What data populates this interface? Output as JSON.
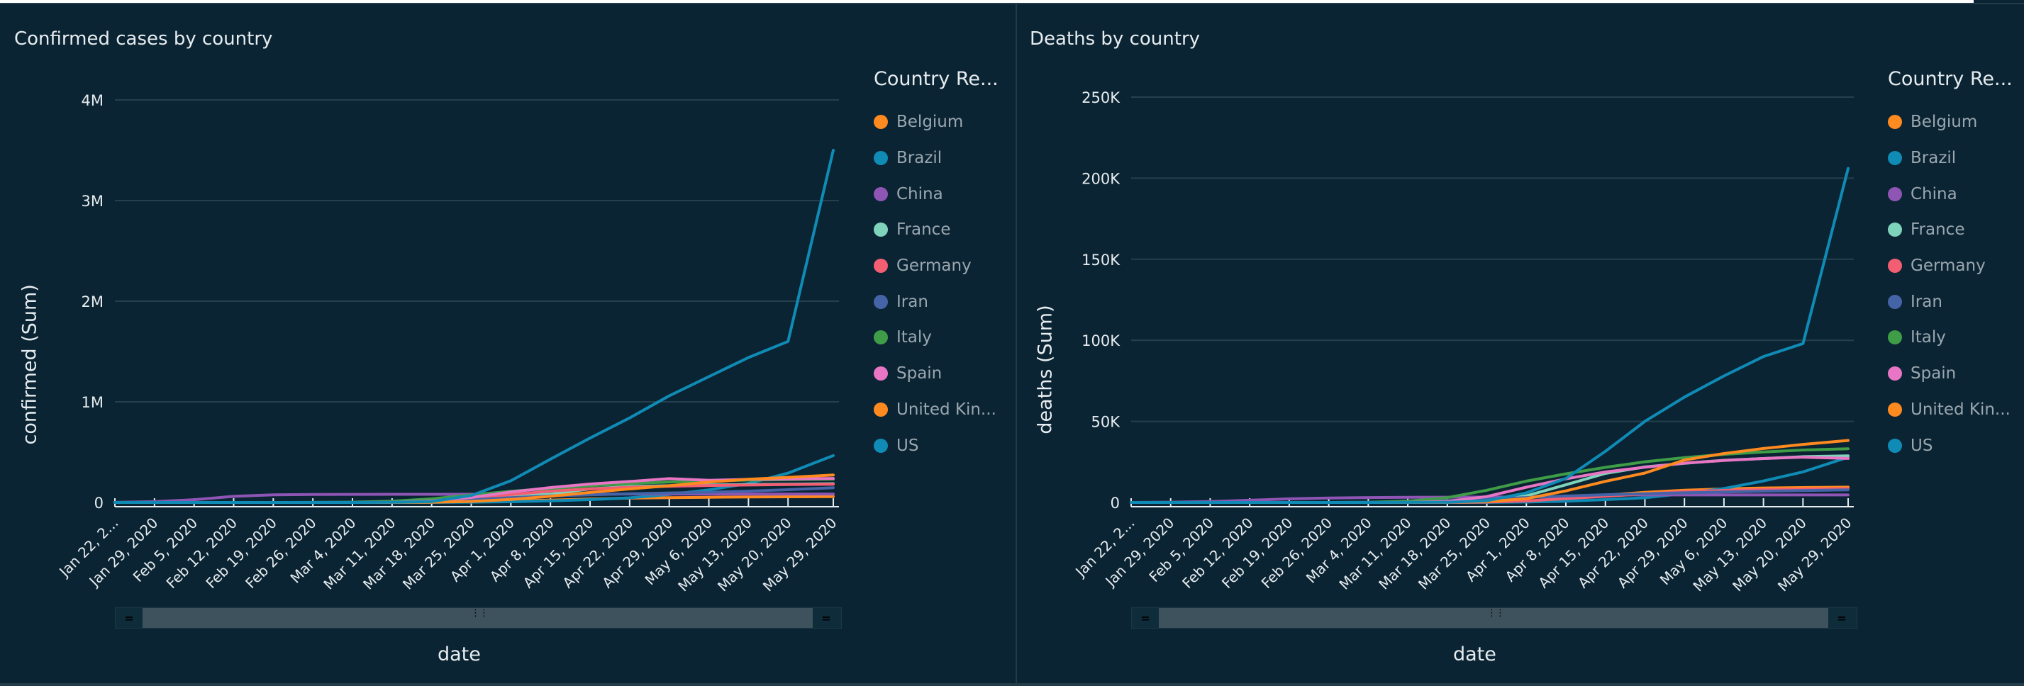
{
  "chart_data": [
    {
      "type": "line",
      "title": "Confirmed cases by country",
      "xlabel": "date",
      "ylabel": "confirmed (Sum)",
      "ylim": [
        0,
        4000000
      ],
      "yticks": [
        0,
        1000000,
        2000000,
        3000000,
        4000000
      ],
      "ytick_labels": [
        "0",
        "1M",
        "2M",
        "3M",
        "4M"
      ],
      "x_start": "2020-01-22",
      "x_end": "2020-05-29",
      "xtick_labels": [
        "Jan 22, 2...",
        "Jan 29, 2020",
        "Feb 5, 2020",
        "Feb 12, 2020",
        "Feb 19, 2020",
        "Feb 26, 2020",
        "Mar 4, 2020",
        "Mar 11, 2020",
        "Mar 18, 2020",
        "Mar 25, 2020",
        "Apr 1, 2020",
        "Apr 8, 2020",
        "Apr 15, 2020",
        "Apr 22, 2020",
        "Apr 29, 2020",
        "May 6, 2020",
        "May 13, 2020",
        "May 20, 2020",
        "May 29, 2020"
      ],
      "grid": true,
      "legend_title": "Country Re...",
      "legend_position": "right",
      "x_days": [
        0,
        7,
        14,
        21,
        28,
        35,
        42,
        49,
        56,
        63,
        70,
        77,
        84,
        91,
        98,
        105,
        112,
        119,
        127
      ],
      "series": [
        {
          "name": "Belgium",
          "color": "#ff8a1f",
          "values": [
            0,
            0,
            0,
            0,
            0,
            0,
            0,
            200,
            1500,
            4900,
            13900,
            23400,
            34800,
            42800,
            47900,
            51400,
            54600,
            56200,
            58400
          ]
        },
        {
          "name": "Brazil",
          "color": "#0f8bb5",
          "values": [
            0,
            0,
            0,
            0,
            0,
            0,
            4,
            52,
            428,
            2554,
            6836,
            15927,
            28320,
            45757,
            79685,
            125218,
            188974,
            291579,
            465166
          ]
        },
        {
          "name": "China",
          "color": "#8e55b4",
          "values": [
            548,
            7736,
            27440,
            60290,
            75077,
            78630,
            80422,
            80921,
            81102,
            81661,
            82361,
            82809,
            83356,
            83884,
            83940,
            83970,
            84024,
            84063,
            84106
          ]
        },
        {
          "name": "France",
          "color": "#7fd3bb",
          "values": [
            0,
            5,
            6,
            11,
            12,
            18,
            285,
            2293,
            9134,
            25600,
            57749,
            83080,
            134582,
            158303,
            166543,
            174224,
            178994,
            181826,
            186835
          ]
        },
        {
          "name": "Germany",
          "color": "#f35e72",
          "values": [
            0,
            4,
            12,
            16,
            16,
            27,
            262,
            1908,
            12327,
            37323,
            77872,
            113296,
            134753,
            150648,
            161539,
            168162,
            173171,
            178473,
            181482
          ]
        },
        {
          "name": "Iran",
          "color": "#4564a8",
          "values": [
            0,
            0,
            0,
            0,
            5,
            139,
            2922,
            9000,
            17361,
            27017,
            47593,
            64586,
            76389,
            85996,
            94640,
            101650,
            112725,
            126949,
            146668
          ]
        },
        {
          "name": "Italy",
          "color": "#3f9d47",
          "values": [
            0,
            0,
            2,
            3,
            3,
            453,
            3089,
            12462,
            35713,
            74386,
            110574,
            139422,
            165155,
            187327,
            203591,
            214457,
            222104,
            227364,
            231732
          ]
        },
        {
          "name": "Spain",
          "color": "#e876c5",
          "values": [
            0,
            0,
            1,
            2,
            2,
            13,
            222,
            2277,
            13910,
            49515,
            104118,
            148220,
            182816,
            208389,
            236899,
            220325,
            228691,
            233037,
            238564
          ]
        },
        {
          "name": "United Kingdom",
          "color": "#ff8a1f",
          "values": [
            0,
            0,
            2,
            9,
            9,
            13,
            87,
            459,
            2689,
            9640,
            29865,
            61474,
            99483,
            134638,
            166441,
            202359,
            230986,
            249619,
            272826
          ]
        },
        {
          "name": "US",
          "color": "#0f8bb5",
          "values": [
            1,
            5,
            12,
            13,
            15,
            60,
            217,
            1281,
            9415,
            68905,
            215215,
            430000,
            640000,
            840000,
            1060000,
            1250000,
            1440000,
            1600000,
            3500000
          ]
        }
      ]
    },
    {
      "type": "line",
      "title": "Deaths by country",
      "xlabel": "date",
      "ylabel": "deaths (Sum)",
      "ylim": [
        0,
        250000
      ],
      "yticks": [
        0,
        50000,
        100000,
        150000,
        200000,
        250000
      ],
      "ytick_labels": [
        "0",
        "50K",
        "100K",
        "150K",
        "200K",
        "250K"
      ],
      "x_start": "2020-01-22",
      "x_end": "2020-05-29",
      "xtick_labels": [
        "Jan 22, 2...",
        "Jan 29, 2020",
        "Feb 5, 2020",
        "Feb 12, 2020",
        "Feb 19, 2020",
        "Feb 26, 2020",
        "Mar 4, 2020",
        "Mar 11, 2020",
        "Mar 18, 2020",
        "Mar 25, 2020",
        "Apr 1, 2020",
        "Apr 8, 2020",
        "Apr 15, 2020",
        "Apr 22, 2020",
        "Apr 29, 2020",
        "May 6, 2020",
        "May 13, 2020",
        "May 20, 2020",
        "May 29, 2020"
      ],
      "grid": true,
      "legend_title": "Country Re...",
      "legend_position": "right",
      "x_days": [
        0,
        7,
        14,
        21,
        28,
        35,
        42,
        49,
        56,
        63,
        70,
        77,
        84,
        91,
        98,
        105,
        112,
        119,
        127
      ],
      "series": [
        {
          "name": "Belgium",
          "color": "#ff8a1f",
          "values": [
            0,
            0,
            0,
            0,
            0,
            0,
            0,
            3,
            14,
            178,
            828,
            2240,
            4440,
            6262,
            7501,
            8339,
            8903,
            9186,
            9430
          ]
        },
        {
          "name": "Brazil",
          "color": "#0f8bb5",
          "values": [
            0,
            0,
            0,
            0,
            0,
            0,
            0,
            0,
            4,
            59,
            241,
            800,
            1736,
            2906,
            5513,
            8588,
            13240,
            18859,
            27878
          ]
        },
        {
          "name": "China",
          "color": "#8e55b4",
          "values": [
            17,
            170,
            564,
            1370,
            2239,
            2761,
            3013,
            3172,
            3248,
            3300,
            3316,
            3335,
            4636,
            4642,
            4643,
            4637,
            4637,
            4638,
            4638
          ]
        },
        {
          "name": "France",
          "color": "#7fd3bb",
          "values": [
            0,
            0,
            0,
            1,
            1,
            2,
            4,
            48,
            264,
            1333,
            4043,
            10887,
            17941,
            21889,
            24121,
            25990,
            27081,
            28242,
            28774
          ]
        },
        {
          "name": "Germany",
          "color": "#f35e72",
          "values": [
            0,
            0,
            0,
            0,
            0,
            0,
            0,
            3,
            28,
            206,
            931,
            2349,
            3804,
            5279,
            6623,
            7417,
            7928,
            8193,
            8530
          ]
        },
        {
          "name": "Iran",
          "color": "#4564a8",
          "values": [
            0,
            0,
            0,
            0,
            2,
            19,
            92,
            354,
            1135,
            2077,
            3036,
            3993,
            4777,
            5391,
            5957,
            6486,
            6937,
            7359,
            7797
          ]
        },
        {
          "name": "Italy",
          "color": "#3f9d47",
          "values": [
            0,
            0,
            0,
            0,
            0,
            12,
            107,
            827,
            2978,
            7503,
            13155,
            17669,
            21645,
            25085,
            27682,
            29684,
            31106,
            32330,
            33142
          ]
        },
        {
          "name": "Spain",
          "color": "#e876c5",
          "values": [
            0,
            0,
            0,
            0,
            0,
            0,
            2,
            55,
            623,
            3647,
            9387,
            14555,
            18812,
            21717,
            24275,
            25857,
            27104,
            27940,
            27121
          ]
        },
        {
          "name": "United Kingdom",
          "color": "#ff8a1f",
          "values": [
            0,
            0,
            0,
            0,
            0,
            0,
            0,
            8,
            104,
            466,
            2357,
            7111,
            13008,
            18151,
            26166,
            30150,
            33264,
            35786,
            38243
          ]
        },
        {
          "name": "US",
          "color": "#0f8bb5",
          "values": [
            0,
            0,
            0,
            0,
            0,
            0,
            11,
            36,
            150,
            1050,
            5926,
            14817,
            31500,
            50000,
            65000,
            78000,
            90000,
            98000,
            206000
          ]
        }
      ]
    }
  ],
  "panels": [
    {
      "title": "Confirmed cases by country",
      "ylabel": "confirmed (Sum)",
      "xlabel": "date",
      "legend_title": "Country Re...",
      "legend": [
        "Belgium",
        "Brazil",
        "China",
        "France",
        "Germany",
        "Iran",
        "Italy",
        "Spain",
        "United Kin...",
        "US"
      ]
    },
    {
      "title": "Deaths by country",
      "ylabel": "deaths (Sum)",
      "xlabel": "date",
      "legend_title": "Country Re...",
      "legend": [
        "Belgium",
        "Brazil",
        "China",
        "France",
        "Germany",
        "Iran",
        "Italy",
        "Spain",
        "United Kin...",
        "US"
      ]
    }
  ],
  "slider": {
    "handle_glyph": "=",
    "grip_glyph": "⋮⋮"
  }
}
